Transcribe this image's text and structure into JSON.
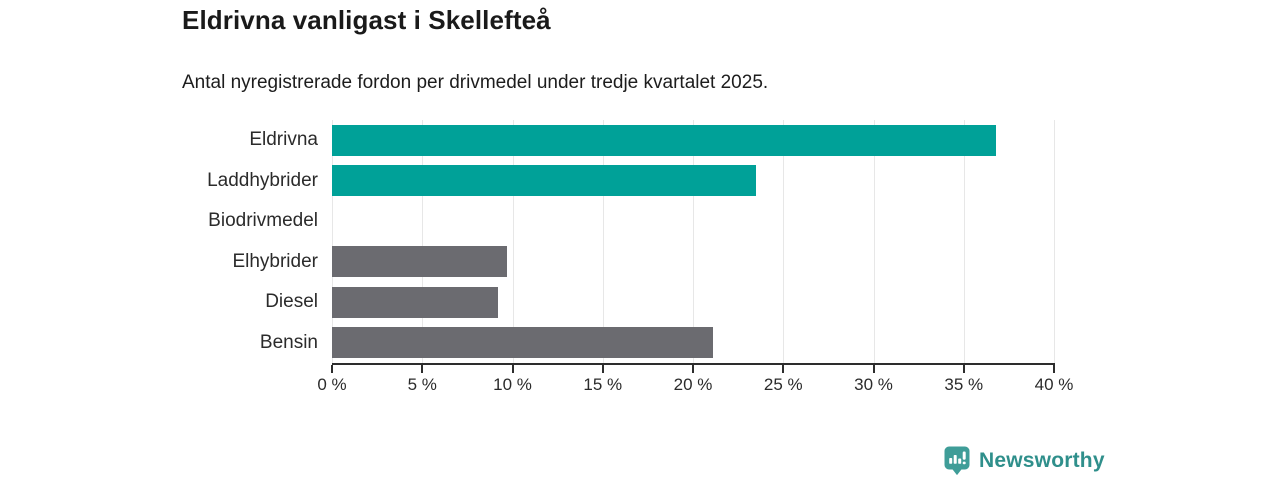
{
  "header": {
    "title": "Eldrivna vanligast i Skellefteå",
    "subtitle": "Antal nyregistrerade fordon per drivmedel under tredje kvartalet 2025."
  },
  "chart_data": {
    "type": "bar",
    "orientation": "horizontal",
    "title": "Eldrivna vanligast i Skellefteå",
    "subtitle": "Antal nyregistrerade fordon per drivmedel under tredje kvartalet 2025.",
    "categories": [
      "Eldrivna",
      "Laddhybrider",
      "Biodrivmedel",
      "Elhybrider",
      "Diesel",
      "Bensin"
    ],
    "values": [
      36.8,
      23.5,
      0,
      9.7,
      9.2,
      21.1
    ],
    "unit": "%",
    "xlim": [
      0,
      40
    ],
    "x_ticks": [
      0,
      5,
      10,
      15,
      20,
      25,
      30,
      35,
      40
    ],
    "x_tick_labels": [
      "0 %",
      "5 %",
      "10 %",
      "15 %",
      "20 %",
      "25 %",
      "30 %",
      "35 %",
      "40 %"
    ],
    "grid": true,
    "legend": "none",
    "bar_colors": [
      "#00a198",
      "#00a198",
      "#6b6b70",
      "#6b6b70",
      "#6b6b70",
      "#6b6b70"
    ]
  },
  "colors": {
    "highlight_teal": "#00a198",
    "neutral_gray": "#6b6b70",
    "gridline": "#e7e7e7",
    "axis": "#2d2d2d",
    "text": "#1d1d1d",
    "logo_teal": "#3f9d98",
    "logo_text_teal": "#2f8f8b"
  },
  "footer": {
    "brand": "Newsworthy",
    "logo_icon": "speech-bubble-bar-chart-icon"
  }
}
